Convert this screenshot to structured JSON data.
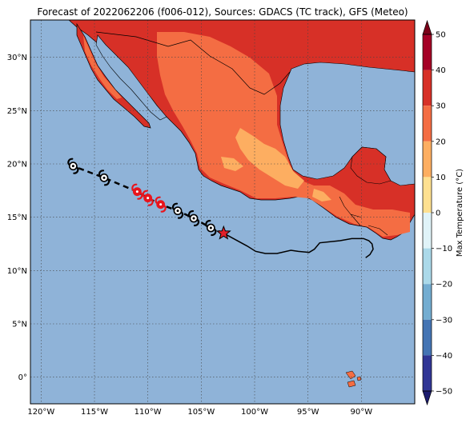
{
  "title": "Forecast of 2022062206 (f006-012), Sources: GDACS (TC track), GFS (Meteo)",
  "map": {
    "lon_range": [
      -121.0,
      -85.0
    ],
    "lat_range": [
      -2.5,
      33.5
    ],
    "lon_ticks": [
      {
        "value": -120,
        "label": "120°W"
      },
      {
        "value": -115,
        "label": "115°W"
      },
      {
        "value": -110,
        "label": "110°W"
      },
      {
        "value": -105,
        "label": "105°W"
      },
      {
        "value": -100,
        "label": "100°W"
      },
      {
        "value": -95,
        "label": "95°W"
      },
      {
        "value": -90,
        "label": "90°W"
      }
    ],
    "lat_ticks": [
      {
        "value": 30,
        "label": "30°N"
      },
      {
        "value": 25,
        "label": "25°N"
      },
      {
        "value": 20,
        "label": "20°N"
      },
      {
        "value": 15,
        "label": "15°N"
      },
      {
        "value": 10,
        "label": "10°N"
      },
      {
        "value": 5,
        "label": "5°N"
      },
      {
        "value": 0,
        "label": "0°"
      }
    ],
    "gridlines": true,
    "ocean_color": "#8fb3d8",
    "track": {
      "forecast_points": [
        {
          "lon": -117.0,
          "lat": 19.8,
          "color": "white"
        },
        {
          "lon": -114.1,
          "lat": 18.7,
          "color": "white"
        },
        {
          "lon": -111.0,
          "lat": 17.4,
          "color": "red"
        },
        {
          "lon": -110.0,
          "lat": 16.8,
          "color": "red"
        },
        {
          "lon": -108.8,
          "lat": 16.2,
          "color": "red"
        },
        {
          "lon": -107.2,
          "lat": 15.6,
          "color": "white"
        },
        {
          "lon": -105.7,
          "lat": 14.9,
          "color": "white"
        },
        {
          "lon": -104.1,
          "lat": 14.0,
          "color": "white"
        }
      ],
      "current_position": {
        "lon": -102.9,
        "lat": 13.5,
        "color": "#e0202a"
      },
      "past_track": [
        [
          -102.9,
          13.5
        ],
        [
          -101.8,
          12.9
        ],
        [
          -100.7,
          12.3
        ],
        [
          -99.9,
          11.8
        ],
        [
          -99.0,
          11.6
        ],
        [
          -97.9,
          11.6
        ],
        [
          -96.6,
          11.9
        ],
        [
          -95.9,
          11.8
        ],
        [
          -94.9,
          11.7
        ],
        [
          -94.4,
          12.0
        ],
        [
          -93.9,
          12.6
        ],
        [
          -92.0,
          12.8
        ],
        [
          -90.9,
          13.0
        ],
        [
          -89.8,
          13.0
        ],
        [
          -89.3,
          12.8
        ],
        [
          -89.0,
          12.5
        ],
        [
          -88.9,
          12.0
        ],
        [
          -89.2,
          11.5
        ],
        [
          -89.6,
          11.2
        ]
      ]
    }
  },
  "colorbar": {
    "label": "Max Temperature (°C)",
    "min": -50,
    "max": 50,
    "ticks": [
      50,
      40,
      30,
      20,
      10,
      0,
      -10,
      -20,
      -30,
      -40,
      -50
    ],
    "tick_labels": [
      "50",
      "40",
      "30",
      "20",
      "10",
      "0",
      "−10",
      "−20",
      "−30",
      "−40",
      "−50"
    ],
    "levels": [
      {
        "from": 40,
        "to": 50,
        "color": "#a50026"
      },
      {
        "from": 30,
        "to": 40,
        "color": "#d73027"
      },
      {
        "from": 20,
        "to": 30,
        "color": "#f46d43"
      },
      {
        "from": 10,
        "to": 20,
        "color": "#fdae61"
      },
      {
        "from": 0,
        "to": 10,
        "color": "#fee090"
      },
      {
        "from": -10,
        "to": 0,
        "color": "#e0f3f8"
      },
      {
        "from": -20,
        "to": -10,
        "color": "#abd9e9"
      },
      {
        "from": -30,
        "to": -20,
        "color": "#74add1"
      },
      {
        "from": -40,
        "to": -30,
        "color": "#4575b4"
      },
      {
        "from": -50,
        "to": -40,
        "color": "#313695"
      }
    ],
    "extend_top_color": "#7a0018",
    "extend_bottom_color": "#1c1c6e"
  }
}
